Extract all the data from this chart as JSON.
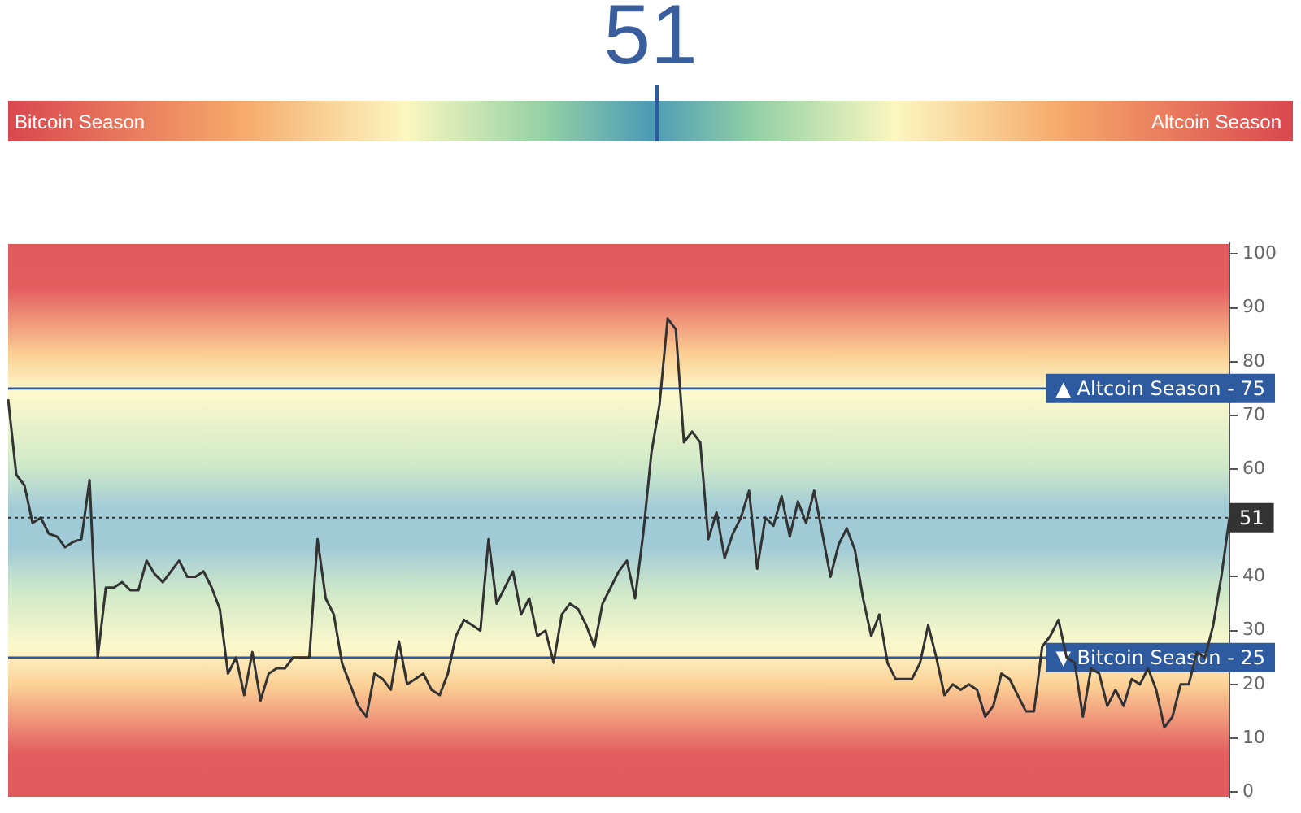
{
  "chart_data": {
    "type": "line",
    "annotations": [
      "51",
      "Bitcoin Season",
      "Altcoin Season"
    ],
    "categories": [
      null,
      null,
      null,
      null,
      null,
      null,
      null,
      null,
      null,
      null,
      null,
      null,
      null,
      null,
      null,
      null,
      null,
      null,
      null,
      null,
      null,
      null,
      null,
      null,
      null,
      null,
      null,
      null,
      null,
      null,
      null,
      null,
      null,
      null,
      null,
      null,
      null,
      null,
      null,
      null,
      null,
      null,
      null,
      null,
      null,
      null,
      null,
      null,
      null,
      null,
      null,
      null,
      null,
      null,
      null,
      null,
      null,
      null,
      null,
      null,
      null,
      null,
      null,
      null,
      null,
      null,
      null,
      null,
      null,
      null,
      null,
      null,
      null,
      null,
      null,
      null,
      null,
      null,
      null,
      null,
      null,
      null,
      null,
      null,
      null,
      null,
      null,
      null,
      null,
      null,
      null,
      null,
      null,
      null,
      null,
      null,
      null,
      null,
      null,
      null,
      null,
      null,
      null,
      null,
      null,
      null,
      null,
      null,
      null,
      null,
      null,
      null,
      null,
      null,
      null,
      null,
      null,
      null,
      null,
      null,
      null,
      null,
      null,
      null,
      null,
      null,
      null,
      null,
      null,
      null,
      null,
      null,
      null,
      null,
      null,
      null,
      null,
      null,
      null,
      null,
      null,
      null,
      null,
      null,
      null,
      null,
      null,
      null,
      null,
      null,
      null
    ],
    "series": [
      {
        "color": "#333333",
        "values": [
          73,
          59,
          57,
          50,
          51,
          48,
          47.5,
          45.5,
          46.5,
          47,
          58,
          25,
          38,
          38,
          39,
          37.5,
          37.5,
          43,
          40.5,
          39,
          41,
          43,
          40,
          40,
          41,
          38,
          34,
          22,
          25,
          18,
          26,
          17,
          22,
          23,
          23,
          25,
          25,
          25,
          47,
          36,
          33,
          24,
          20,
          16,
          14,
          22,
          21,
          19,
          28,
          20,
          21,
          22,
          19,
          18,
          22,
          29,
          32,
          31,
          30,
          47,
          35,
          38,
          41,
          33,
          36,
          29,
          30,
          24,
          33,
          35,
          34,
          31,
          27,
          35,
          38,
          41,
          43,
          36,
          48,
          63,
          72,
          88,
          86,
          65,
          67,
          65,
          47,
          52,
          43.5,
          48,
          51,
          56,
          41.5,
          51,
          49.5,
          55,
          47.5,
          54,
          50,
          56,
          48,
          40,
          46,
          49,
          45,
          36,
          29,
          33,
          24,
          21,
          21,
          21,
          24,
          31,
          25,
          18,
          20,
          19,
          20,
          19,
          14,
          16,
          22,
          21,
          18,
          15,
          15,
          27,
          29,
          32,
          25,
          24,
          14,
          23,
          22,
          16,
          19,
          16,
          21,
          20,
          23,
          19,
          12,
          14,
          20,
          20,
          26,
          25,
          31,
          40,
          51
        ]
      }
    ],
    "ylim": [
      -1,
      102
    ],
    "yticks": [
      0,
      10,
      20,
      30,
      40,
      60,
      70,
      80,
      90,
      100
    ],
    "grid": false,
    "legend": false,
    "marker": "none",
    "line_style": "solid",
    "tick_labels": "y",
    "ref_lines": [
      {
        "axis": "y",
        "value": 75,
        "label": "▲ Altcoin Season - 75",
        "color": "#2e5aa0",
        "line_style": "solid"
      },
      {
        "axis": "y",
        "value": 25,
        "label": "▼ Bitcoin Season - 25",
        "color": "#2e5aa0",
        "line_style": "solid"
      },
      {
        "axis": "y",
        "value": 51,
        "label": "51",
        "color": "#333333",
        "line_style": "dotted"
      }
    ]
  }
}
